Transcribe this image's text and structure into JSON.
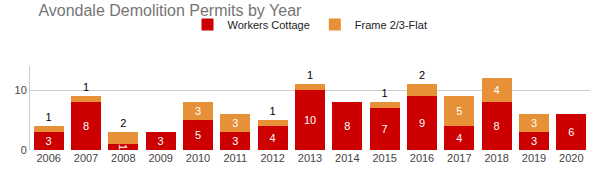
{
  "chart_data": {
    "type": "bar",
    "title": "Avondale Demolition Permits by Year",
    "categories": [
      "2006",
      "2007",
      "2008",
      "2009",
      "2010",
      "2011",
      "2012",
      "2013",
      "2014",
      "2015",
      "2016",
      "2017",
      "2018",
      "2019",
      "2020"
    ],
    "series": [
      {
        "name": "Workers Cottage",
        "color": "#cc0000",
        "values": [
          3,
          8,
          1,
          3,
          5,
          3,
          4,
          10,
          8,
          7,
          9,
          4,
          8,
          3,
          6
        ]
      },
      {
        "name": "Frame 2/3-Flat",
        "color": "#e69138",
        "values": [
          1,
          1,
          2,
          null,
          3,
          3,
          1,
          1,
          null,
          1,
          2,
          5,
          4,
          3,
          null
        ]
      }
    ],
    "stacked": true,
    "data_labels": true,
    "ylim": [
      0,
      14
    ],
    "yticks": [
      0,
      10
    ],
    "grid": true,
    "legend": "top"
  }
}
